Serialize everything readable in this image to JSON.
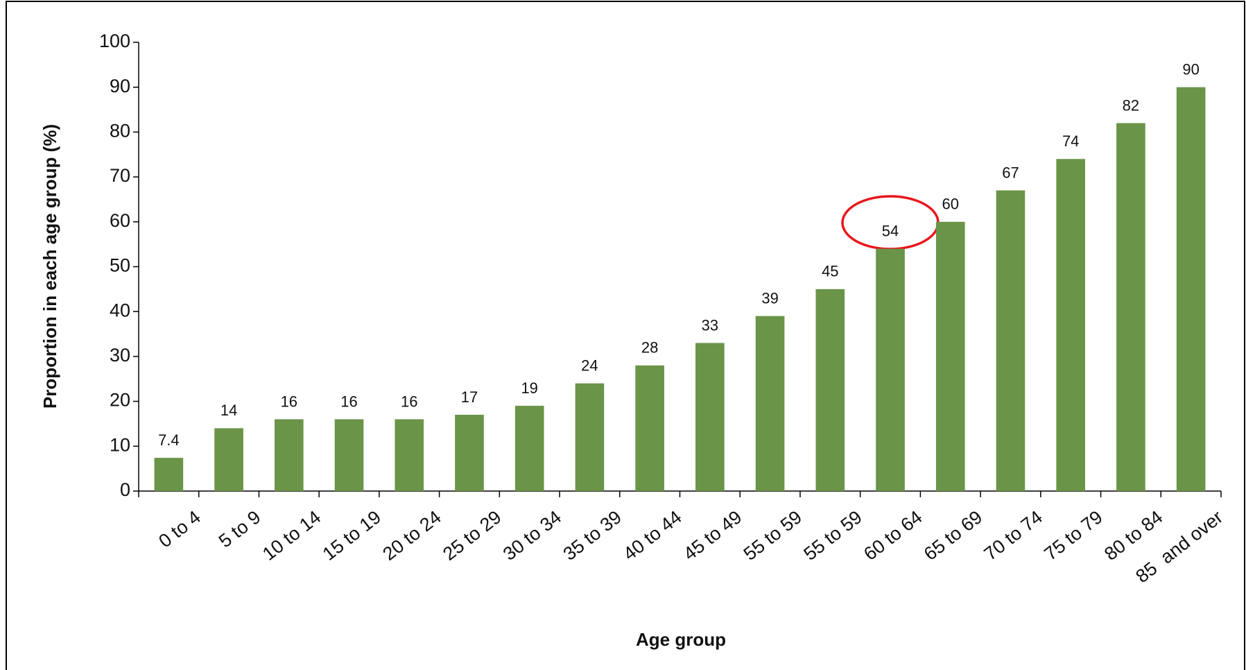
{
  "chart_data": {
    "type": "bar",
    "ylabel": "Proportion in each age group (%)",
    "xlabel": "Age group",
    "categories": [
      "0 to 4",
      "5 to 9",
      "10 to 14",
      "15 to 19",
      "20 to 24",
      "25 to 29",
      "30 to 34",
      "35 to 39",
      "40 to 44",
      "45 to 49",
      "55 to 59",
      "55 to 59",
      "60 to 64",
      "65 to 69",
      "70 to 74",
      "75 to 79",
      "80 to 84",
      "85  and over"
    ],
    "values": [
      7.4,
      14,
      16,
      16,
      16,
      17,
      19,
      24,
      28,
      33,
      39,
      45,
      54,
      60,
      67,
      74,
      82,
      90
    ],
    "color": "#6a9447",
    "ylim": [
      0,
      100
    ],
    "yticks": [
      0,
      10,
      20,
      30,
      40,
      50,
      60,
      70,
      80,
      90,
      100
    ]
  }
}
